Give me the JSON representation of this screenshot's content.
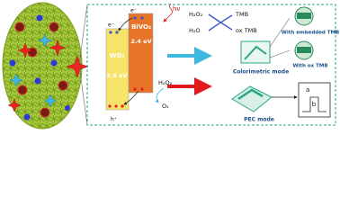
{
  "band_diagram": {
    "wo3": {
      "label": "WO₃",
      "gap": "2.6 eV"
    },
    "bivo4": {
      "label": "BiVO₄",
      "gap": "2.4 eV"
    },
    "light": "hν",
    "electron": "e⁻",
    "hole": "h⁺",
    "reactant": "H₂O₂",
    "product": "O₂"
  },
  "reaction": {
    "h2o2": "H₂O₂",
    "h2o": "H₂O",
    "tmb": "TMB",
    "ox_tmb": "ox TMB"
  },
  "colorimetric": {
    "label": "Colorimetric mode",
    "embedded": "With embedded TMB",
    "ox": "With ox TMB"
  },
  "pec": {
    "label": "PEC mode",
    "a": "a",
    "b": "b"
  }
}
